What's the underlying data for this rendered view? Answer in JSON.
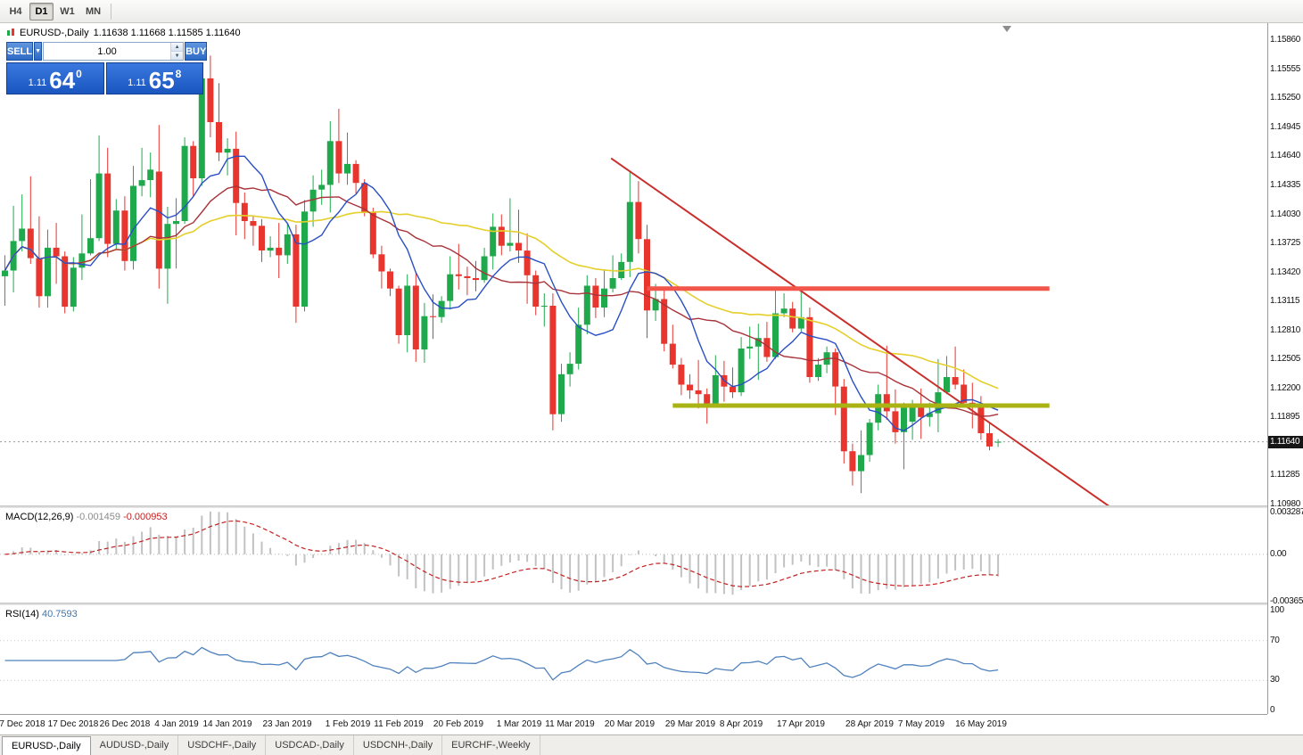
{
  "toolbar": {
    "timeframes": [
      {
        "label": "H4",
        "active": false
      },
      {
        "label": "D1",
        "active": true
      },
      {
        "label": "W1",
        "active": false
      },
      {
        "label": "MN",
        "active": false
      }
    ]
  },
  "chart_header": {
    "symbol_period": "EURUSD-,Daily",
    "ohlc": "1.11638 1.11668 1.11585 1.11640"
  },
  "trade_panel": {
    "sell_label": "SELL",
    "buy_label": "BUY",
    "lot_value": "1.00",
    "sell_price": {
      "small": "1.11",
      "big": "64",
      "sup": "0"
    },
    "buy_price": {
      "small": "1.11",
      "big": "65",
      "sup": "8"
    }
  },
  "price_axis": {
    "current_price_tag": "1.11640"
  },
  "macd_panel": {
    "name": "MACD(12,26,9)",
    "main_value": "-0.001459",
    "signal_value": "-0.000953",
    "axis": [
      {
        "text": "0.003287",
        "value": 0.003287
      },
      {
        "text": "0.00",
        "value": 0
      },
      {
        "text": "-0.003659",
        "value": -0.003659
      }
    ]
  },
  "rsi_panel": {
    "name": "RSI(14)",
    "value": "40.7593",
    "axis": [
      {
        "text": "100",
        "value": 100
      },
      {
        "text": "70",
        "value": 70
      },
      {
        "text": "30",
        "value": 30
      },
      {
        "text": "0",
        "value": 0
      }
    ]
  },
  "tabs": [
    {
      "label": "EURUSD-,Daily",
      "active": true
    },
    {
      "label": "AUDUSD-,Daily",
      "active": false
    },
    {
      "label": "USDCHF-,Daily",
      "active": false
    },
    {
      "label": "USDCAD-,Daily",
      "active": false
    },
    {
      "label": "USDCNH-,Daily",
      "active": false
    },
    {
      "label": "EURCHF-,Weekly",
      "active": false
    }
  ],
  "chart_data": {
    "type": "candlestick",
    "symbol": "EURUSD-",
    "period": "Daily",
    "title": "EURUSD-,Daily",
    "y_scale": {
      "price_top": 1.1604,
      "price_bottom": 1.1098
    },
    "y_axis_labels": [
      "1.15860",
      "1.15555",
      "1.15250",
      "1.14945",
      "1.14640",
      "1.14335",
      "1.14030",
      "1.13725",
      "1.13420",
      "1.13115",
      "1.12810",
      "1.12505",
      "1.12200",
      "1.11895",
      "1.11590",
      "1.11285",
      "1.10980"
    ],
    "x_labels": [
      {
        "text": "7 Dec 2018",
        "index": 2
      },
      {
        "text": "17 Dec 2018",
        "index": 8
      },
      {
        "text": "26 Dec 2018",
        "index": 14
      },
      {
        "text": "4 Jan 2019",
        "index": 20
      },
      {
        "text": "14 Jan 2019",
        "index": 26
      },
      {
        "text": "23 Jan 2019",
        "index": 33
      },
      {
        "text": "1 Feb 2019",
        "index": 40
      },
      {
        "text": "11 Feb 2019",
        "index": 46
      },
      {
        "text": "20 Feb 2019",
        "index": 53
      },
      {
        "text": "1 Mar 2019",
        "index": 60
      },
      {
        "text": "11 Mar 2019",
        "index": 66
      },
      {
        "text": "20 Mar 2019",
        "index": 73
      },
      {
        "text": "29 Mar 2019",
        "index": 80
      },
      {
        "text": "8 Apr 2019",
        "index": 86
      },
      {
        "text": "17 Apr 2019",
        "index": 93
      },
      {
        "text": "28 Apr 2019",
        "index": 101
      },
      {
        "text": "7 May 2019",
        "index": 107
      },
      {
        "text": "16 May 2019",
        "index": 114
      }
    ],
    "colors": {
      "up": "#1fa94c",
      "down": "#e8352e",
      "ma_fast": "#2a4fc4",
      "ma_mid": "#a8333a",
      "ma_slow": "#e5cf2b",
      "trend": "#c9302c",
      "resistance": "#f2564a",
      "support": "#a9b414",
      "macd_hist": "#c2c2c2",
      "macd_signal": "#c32222",
      "rsi": "#4f81bd",
      "price_line": "#9a9a9a"
    },
    "ma_periods": {
      "fast": 8,
      "mid": 17,
      "slow": 40
    },
    "overlays": {
      "trendline": {
        "i1": 70.8,
        "p1": 1.1462,
        "i2": 129,
        "p2": 1.1096
      },
      "resistance": {
        "price": 1.1325,
        "i1": 75,
        "i2": 122
      },
      "support": {
        "price": 1.1202,
        "i1": 78,
        "i2": 122
      },
      "current_price": 1.1164
    },
    "macd": {
      "fast": 12,
      "slow": 26,
      "signal": 9,
      "scale_max": 0.0036,
      "scale_min": -0.00375
    },
    "rsi": {
      "period": 14,
      "levels": [
        70,
        30
      ],
      "range": [
        0,
        100
      ]
    },
    "candles": [
      [
        1.1338,
        1.136,
        1.1307,
        1.1344
      ],
      [
        1.1344,
        1.1412,
        1.1321,
        1.1375
      ],
      [
        1.1375,
        1.1424,
        1.1364,
        1.1388
      ],
      [
        1.1388,
        1.1443,
        1.1351,
        1.1357
      ],
      [
        1.1357,
        1.1401,
        1.1305,
        1.1317
      ],
      [
        1.1317,
        1.1387,
        1.1305,
        1.1368
      ],
      [
        1.1368,
        1.1394,
        1.133,
        1.1359
      ],
      [
        1.1359,
        1.1364,
        1.1299,
        1.1306
      ],
      [
        1.1306,
        1.1358,
        1.1301,
        1.1347
      ],
      [
        1.1347,
        1.1403,
        1.1334,
        1.1362
      ],
      [
        1.1362,
        1.144,
        1.136,
        1.1378
      ],
      [
        1.1378,
        1.1486,
        1.1375,
        1.1446
      ],
      [
        1.1446,
        1.1473,
        1.1358,
        1.1372
      ],
      [
        1.1372,
        1.1419,
        1.1366,
        1.1407
      ],
      [
        1.1407,
        1.1422,
        1.1344,
        1.1354
      ],
      [
        1.1354,
        1.1454,
        1.1345,
        1.1433
      ],
      [
        1.1433,
        1.1473,
        1.1422,
        1.1439
      ],
      [
        1.1439,
        1.1468,
        1.1421,
        1.145
      ],
      [
        1.1448,
        1.1497,
        1.1325,
        1.1346
      ],
      [
        1.1346,
        1.1411,
        1.1309,
        1.1393
      ],
      [
        1.1393,
        1.142,
        1.1346,
        1.1396
      ],
      [
        1.1396,
        1.1484,
        1.1393,
        1.1475
      ],
      [
        1.1475,
        1.148,
        1.1422,
        1.1441
      ],
      [
        1.1441,
        1.1559,
        1.1433,
        1.1546
      ],
      [
        1.1546,
        1.157,
        1.1484,
        1.15
      ],
      [
        1.15,
        1.1541,
        1.1459,
        1.1468
      ],
      [
        1.1468,
        1.1483,
        1.1444,
        1.1472
      ],
      [
        1.1472,
        1.149,
        1.1381,
        1.1415
      ],
      [
        1.1415,
        1.1426,
        1.1377,
        1.1396
      ],
      [
        1.1396,
        1.1401,
        1.137,
        1.1391
      ],
      [
        1.1391,
        1.1398,
        1.1353,
        1.1365
      ],
      [
        1.1365,
        1.138,
        1.1358,
        1.1368
      ],
      [
        1.1368,
        1.1394,
        1.1336,
        1.136
      ],
      [
        1.136,
        1.1394,
        1.1351,
        1.1382
      ],
      [
        1.1382,
        1.1392,
        1.1289,
        1.1306
      ],
      [
        1.1306,
        1.1418,
        1.1301,
        1.1406
      ],
      [
        1.1406,
        1.1444,
        1.139,
        1.1429
      ],
      [
        1.1429,
        1.145,
        1.1413,
        1.1434
      ],
      [
        1.1434,
        1.1501,
        1.1405,
        1.148
      ],
      [
        1.148,
        1.1514,
        1.1436,
        1.1446
      ],
      [
        1.1446,
        1.1489,
        1.1434,
        1.1456
      ],
      [
        1.1456,
        1.146,
        1.1425,
        1.1436
      ],
      [
        1.1436,
        1.144,
        1.1401,
        1.1405
      ],
      [
        1.1405,
        1.141,
        1.1357,
        1.1361
      ],
      [
        1.1361,
        1.137,
        1.1325,
        1.1343
      ],
      [
        1.1343,
        1.1346,
        1.1317,
        1.1325
      ],
      [
        1.1325,
        1.1328,
        1.1267,
        1.1276
      ],
      [
        1.1276,
        1.134,
        1.1258,
        1.1328
      ],
      [
        1.1328,
        1.1341,
        1.1248,
        1.1261
      ],
      [
        1.1261,
        1.131,
        1.1247,
        1.1296
      ],
      [
        1.1296,
        1.1319,
        1.1272,
        1.1295
      ],
      [
        1.1295,
        1.1317,
        1.1289,
        1.1312
      ],
      [
        1.1312,
        1.1359,
        1.1303,
        1.134
      ],
      [
        1.134,
        1.1372,
        1.1324,
        1.1338
      ],
      [
        1.1338,
        1.1348,
        1.1318,
        1.1336
      ],
      [
        1.1336,
        1.1354,
        1.1322,
        1.1334
      ],
      [
        1.1334,
        1.1368,
        1.1331,
        1.1359
      ],
      [
        1.1359,
        1.1404,
        1.1345,
        1.139
      ],
      [
        1.139,
        1.1403,
        1.136,
        1.137
      ],
      [
        1.137,
        1.142,
        1.1364,
        1.1373
      ],
      [
        1.1373,
        1.1408,
        1.1352,
        1.1365
      ],
      [
        1.1365,
        1.1383,
        1.1309,
        1.1339
      ],
      [
        1.1339,
        1.1344,
        1.1297,
        1.1306
      ],
      [
        1.1306,
        1.132,
        1.1285,
        1.1307
      ],
      [
        1.1307,
        1.132,
        1.1176,
        1.1193
      ],
      [
        1.1193,
        1.1246,
        1.1185,
        1.1235
      ],
      [
        1.1235,
        1.1258,
        1.1222,
        1.1246
      ],
      [
        1.1246,
        1.1305,
        1.124,
        1.1287
      ],
      [
        1.1287,
        1.1339,
        1.1277,
        1.1328
      ],
      [
        1.1328,
        1.1336,
        1.1294,
        1.1305
      ],
      [
        1.1305,
        1.1345,
        1.1295,
        1.1325
      ],
      [
        1.1325,
        1.136,
        1.1321,
        1.1336
      ],
      [
        1.1336,
        1.1362,
        1.1334,
        1.1353
      ],
      [
        1.1353,
        1.1448,
        1.1337,
        1.1416
      ],
      [
        1.1416,
        1.1438,
        1.1362,
        1.1377
      ],
      [
        1.1377,
        1.1392,
        1.1273,
        1.1302
      ],
      [
        1.1302,
        1.133,
        1.1291,
        1.1314
      ],
      [
        1.1314,
        1.1326,
        1.1259,
        1.1267
      ],
      [
        1.1267,
        1.1287,
        1.1241,
        1.1245
      ],
      [
        1.1245,
        1.1252,
        1.1213,
        1.1224
      ],
      [
        1.1224,
        1.1235,
        1.1209,
        1.1218
      ],
      [
        1.1218,
        1.125,
        1.1199,
        1.1214
      ],
      [
        1.1214,
        1.122,
        1.1183,
        1.1203
      ],
      [
        1.1203,
        1.1255,
        1.1201,
        1.1234
      ],
      [
        1.1234,
        1.1249,
        1.1206,
        1.1222
      ],
      [
        1.1222,
        1.1242,
        1.121,
        1.1216
      ],
      [
        1.1216,
        1.1274,
        1.1212,
        1.1262
      ],
      [
        1.1262,
        1.1285,
        1.1251,
        1.1264
      ],
      [
        1.1264,
        1.1288,
        1.1229,
        1.1273
      ],
      [
        1.1273,
        1.129,
        1.1248,
        1.1253
      ],
      [
        1.1253,
        1.1325,
        1.1251,
        1.1299
      ],
      [
        1.1299,
        1.132,
        1.1295,
        1.1304
      ],
      [
        1.1304,
        1.1311,
        1.1279,
        1.1283
      ],
      [
        1.1283,
        1.1324,
        1.128,
        1.1295
      ],
      [
        1.1295,
        1.1305,
        1.1226,
        1.1232
      ],
      [
        1.1232,
        1.1252,
        1.1228,
        1.1245
      ],
      [
        1.1245,
        1.1264,
        1.1236,
        1.1258
      ],
      [
        1.1258,
        1.1262,
        1.1192,
        1.1222
      ],
      [
        1.1222,
        1.123,
        1.1141,
        1.1154
      ],
      [
        1.1154,
        1.1162,
        1.1118,
        1.1133
      ],
      [
        1.1133,
        1.1176,
        1.111,
        1.115
      ],
      [
        1.115,
        1.1188,
        1.1143,
        1.1184
      ],
      [
        1.1184,
        1.1224,
        1.1176,
        1.1214
      ],
      [
        1.1214,
        1.1265,
        1.1187,
        1.1196
      ],
      [
        1.1196,
        1.1219,
        1.1162,
        1.1174
      ],
      [
        1.1174,
        1.1205,
        1.1135,
        1.12
      ],
      [
        1.1185,
        1.1208,
        1.1166,
        1.12
      ],
      [
        1.12,
        1.122,
        1.1167,
        1.119
      ],
      [
        1.119,
        1.1205,
        1.118,
        1.1194
      ],
      [
        1.1194,
        1.1251,
        1.1174,
        1.1216
      ],
      [
        1.1216,
        1.1254,
        1.1214,
        1.1232
      ],
      [
        1.1232,
        1.1264,
        1.1219,
        1.1224
      ],
      [
        1.1224,
        1.124,
        1.1201,
        1.1205
      ],
      [
        1.1205,
        1.1226,
        1.1178,
        1.1204
      ],
      [
        1.1204,
        1.1212,
        1.1166,
        1.1173
      ],
      [
        1.1173,
        1.1184,
        1.1155,
        1.1159
      ],
      [
        1.11638,
        1.11668,
        1.11585,
        1.1164
      ]
    ]
  }
}
